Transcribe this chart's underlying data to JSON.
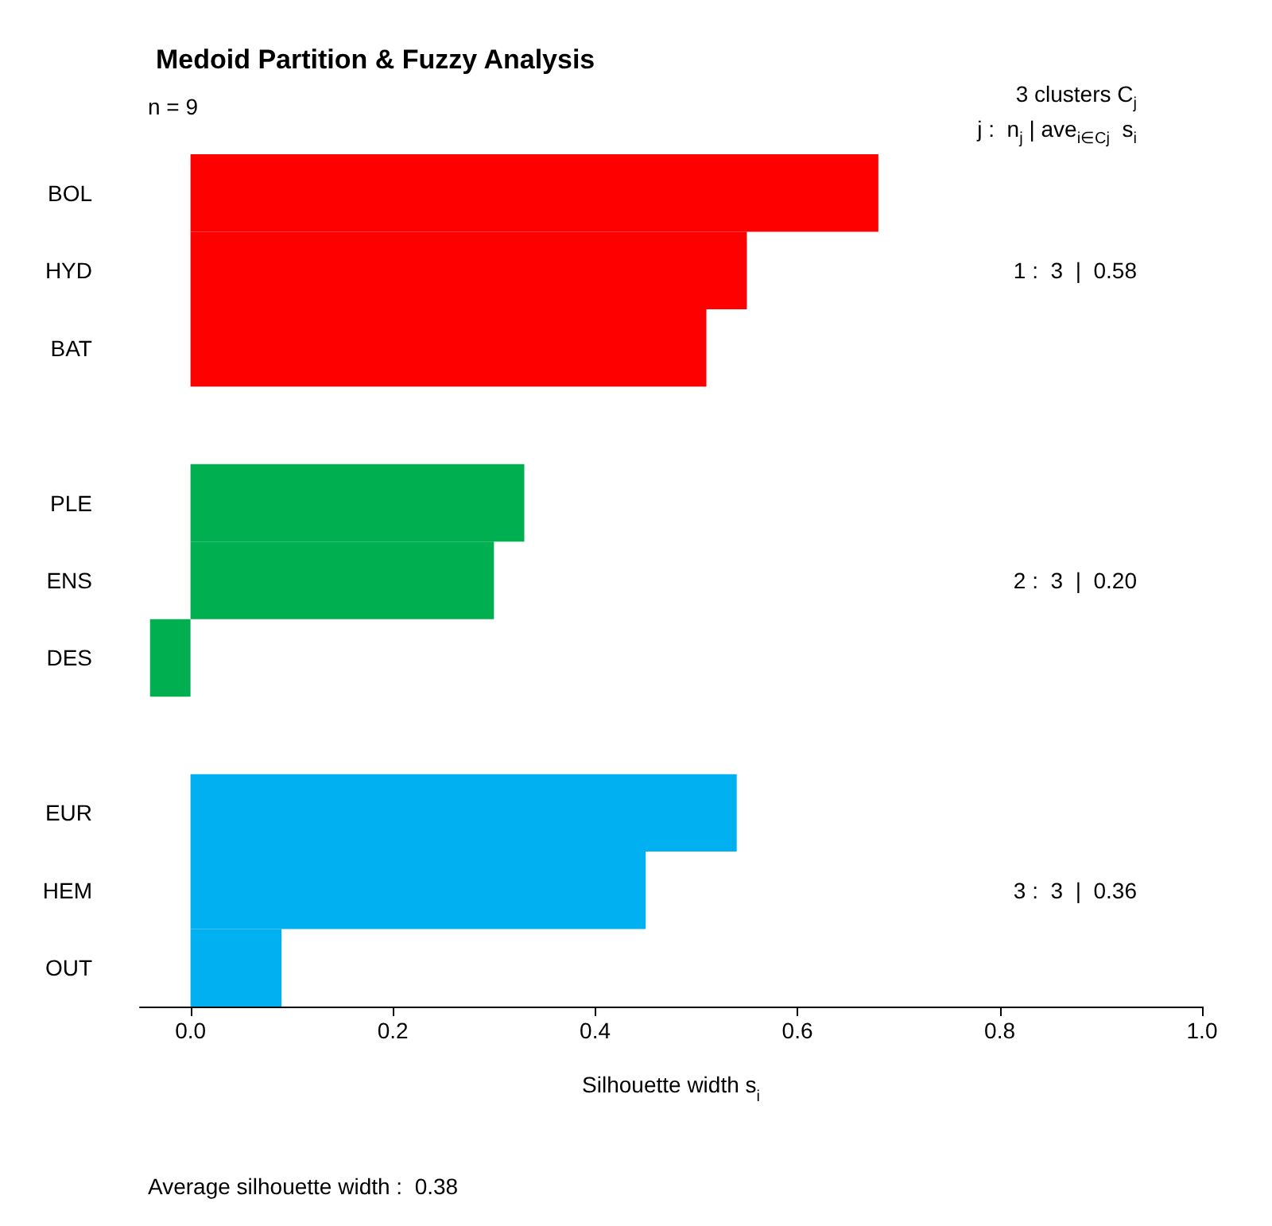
{
  "chart_data": {
    "type": "bar",
    "orientation": "horizontal",
    "title": "Medoid Partition & Fuzzy Analysis",
    "xlabel": "Silhouette width s$_{i}$",
    "categories": [
      "BOL",
      "HYD",
      "BAT",
      null,
      "PLE",
      "ENS",
      "DES",
      null,
      "EUR",
      "HEM",
      "OUT"
    ],
    "values": [
      0.68,
      0.55,
      0.51,
      null,
      0.33,
      0.3,
      -0.04,
      null,
      0.54,
      0.45,
      0.09
    ],
    "colors": [
      "#ff0000",
      "#ff0000",
      "#ff0000",
      "#ff0000",
      "#00b050",
      "#00b050",
      "#00b050",
      "#00b050",
      "#00b0f0",
      "#00b0f0",
      "#00b0f0"
    ],
    "xlim": [
      -0.05,
      1.0
    ],
    "xticks": [
      {
        "value": 0,
        "label": "0.0"
      },
      {
        "value": 0.2,
        "label": "0.2"
      },
      {
        "value": 0.4,
        "label": "0.4"
      },
      {
        "value": 0.6,
        "label": "0.6"
      },
      {
        "value": 0.8,
        "label": "0.8"
      },
      {
        "value": 1,
        "label": "1.0"
      }
    ],
    "annotations": [
      "n = 9",
      "3 clusters C$_{j}$",
      "j :  n$_{j}$ | ave$_{i∈Cj}$  s$_{i}$",
      "1 :  3  |  0.58",
      "2 :  3  |  0.20",
      "3 :  3  |  0.36",
      "Average silhouette width :  0.38"
    ],
    "grid": false
  }
}
